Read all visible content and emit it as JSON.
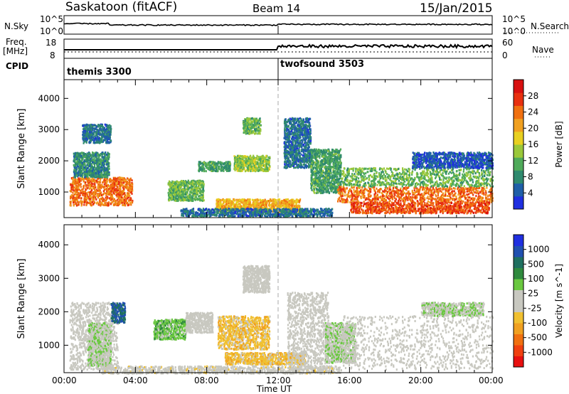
{
  "header": {
    "title": "Saskatoon (fitACF)",
    "beam": "Beam 14",
    "date": "15/Jan/2015"
  },
  "top_panels": {
    "nsky_label": "N.Sky",
    "nsky_ticks": [
      "10^5",
      "10^0"
    ],
    "nsearch_label": "N.Search",
    "nsearch_ticks": [
      "10^5",
      "10^0"
    ],
    "freq_label": "Freq.",
    "freq_unit": "[MHz]",
    "freq_ticks": [
      "18",
      "8"
    ],
    "nave_label": "Nave",
    "nave_ticks": [
      "60",
      "0"
    ],
    "cpid_label": "CPID",
    "cpid_segments": [
      {
        "name": "themis 3300",
        "start_h": 0,
        "end_h": 12.0
      },
      {
        "name": "twofsound 3503",
        "start_h": 12.0,
        "end_h": 24
      }
    ]
  },
  "x_axis": {
    "title": "Time UT",
    "ticks": [
      "00:00",
      "04:00",
      "08:00",
      "12:00",
      "16:00",
      "20:00",
      "00:00"
    ]
  },
  "chart_data": [
    {
      "type": "heatmap",
      "title": "",
      "xlabel": "Time UT",
      "ylabel": "Slant Range [km]",
      "xlim_hours": [
        0,
        24
      ],
      "ylim": [
        180,
        4600
      ],
      "y_ticks": [
        1000,
        2000,
        3000,
        4000
      ],
      "colorbar": {
        "label": "Power [dB]",
        "ticks": [
          "28",
          "24",
          "20",
          "16",
          "12",
          "8",
          "4"
        ],
        "range": [
          0,
          32
        ],
        "colors": [
          "#1f2fe0",
          "#1f5fa8",
          "#2f8a6e",
          "#4faa5a",
          "#9ac83a",
          "#e8d020",
          "#f0a020",
          "#f07010",
          "#e83010",
          "#d81010"
        ]
      },
      "regions": [
        {
          "t0": 0.3,
          "t1": 3.8,
          "r0": 600,
          "r1": 1500,
          "level": 24
        },
        {
          "t0": 0.5,
          "t1": 2.5,
          "r0": 1500,
          "r1": 2300,
          "level": 8
        },
        {
          "t0": 1.0,
          "t1": 2.6,
          "r0": 2600,
          "r1": 3200,
          "level": 6
        },
        {
          "t0": 5.8,
          "t1": 7.8,
          "r0": 750,
          "r1": 1400,
          "level": 12
        },
        {
          "t0": 7.5,
          "t1": 9.3,
          "r0": 1700,
          "r1": 2000,
          "level": 10
        },
        {
          "t0": 9.5,
          "t1": 11.5,
          "r0": 1700,
          "r1": 2200,
          "level": 14
        },
        {
          "t0": 10.0,
          "t1": 11.0,
          "r0": 2900,
          "r1": 3400,
          "level": 12
        },
        {
          "t0": 8.5,
          "t1": 13.2,
          "r0": 400,
          "r1": 800,
          "level": 20
        },
        {
          "t0": 6.5,
          "t1": 15.0,
          "r0": 250,
          "r1": 500,
          "level": 6
        },
        {
          "t0": 12.3,
          "t1": 13.8,
          "r0": 1800,
          "r1": 3400,
          "level": 6
        },
        {
          "t0": 13.8,
          "t1": 15.5,
          "r0": 1000,
          "r1": 2400,
          "level": 10
        },
        {
          "t0": 15.3,
          "t1": 24,
          "r0": 700,
          "r1": 1200,
          "level": 24
        },
        {
          "t0": 15.5,
          "t1": 24,
          "r0": 1200,
          "r1": 1800,
          "level": 12
        },
        {
          "t0": 16.0,
          "t1": 23.8,
          "r0": 350,
          "r1": 700,
          "level": 26
        },
        {
          "t0": 19.5,
          "t1": 24,
          "r0": 1800,
          "r1": 2300,
          "level": 4
        }
      ]
    },
    {
      "type": "heatmap",
      "title": "",
      "xlabel": "Time UT",
      "ylabel": "Slant Range [km]",
      "xlim_hours": [
        0,
        24
      ],
      "ylim": [
        180,
        4600
      ],
      "y_ticks": [
        1000,
        2000,
        3000,
        4000
      ],
      "colorbar": {
        "label": "Velocity [m s^-1]",
        "ticks": [
          "1000",
          "500",
          "100",
          "25",
          "-25",
          "-100",
          "-500",
          "-1000"
        ],
        "range": [
          -1200,
          1200
        ],
        "colors": [
          "#e81010",
          "#f04010",
          "#f07010",
          "#f0a020",
          "#f0c030",
          "#c8c8c0",
          "#c8c8c0",
          "#6ac840",
          "#2f8a3e",
          "#1f7060",
          "#2050b0",
          "#1f2fe0"
        ]
      },
      "regions": [
        {
          "t0": 0.3,
          "t1": 3.0,
          "r0": 300,
          "r1": 2300,
          "level": 0
        },
        {
          "t0": 1.3,
          "t1": 2.6,
          "r0": 400,
          "r1": 1700,
          "level": 150
        },
        {
          "t0": 2.6,
          "t1": 3.4,
          "r0": 1700,
          "r1": 2300,
          "level": 800
        },
        {
          "t0": 5.0,
          "t1": 6.8,
          "r0": 1200,
          "r1": 1800,
          "level": 300
        },
        {
          "t0": 6.8,
          "t1": 8.3,
          "r0": 1400,
          "r1": 2000,
          "level": 0
        },
        {
          "t0": 8.6,
          "t1": 11.5,
          "r0": 900,
          "r1": 1900,
          "level": -300
        },
        {
          "t0": 9.0,
          "t1": 13.5,
          "r0": 450,
          "r1": 800,
          "level": -300
        },
        {
          "t0": 2.0,
          "t1": 15.5,
          "r0": 180,
          "r1": 400,
          "level": -60
        },
        {
          "t0": 10.0,
          "t1": 11.5,
          "r0": 2600,
          "r1": 3400,
          "level": 0
        },
        {
          "t0": 12.5,
          "t1": 14.8,
          "r0": 300,
          "r1": 2600,
          "level": 0
        },
        {
          "t0": 14.6,
          "t1": 16.3,
          "r0": 500,
          "r1": 1700,
          "level": 150
        },
        {
          "t0": 15.5,
          "t1": 24,
          "r0": 300,
          "r1": 1900,
          "level": 0
        },
        {
          "t0": 20.0,
          "t1": 23.5,
          "r0": 1900,
          "r1": 2300,
          "level": 150
        }
      ]
    }
  ]
}
